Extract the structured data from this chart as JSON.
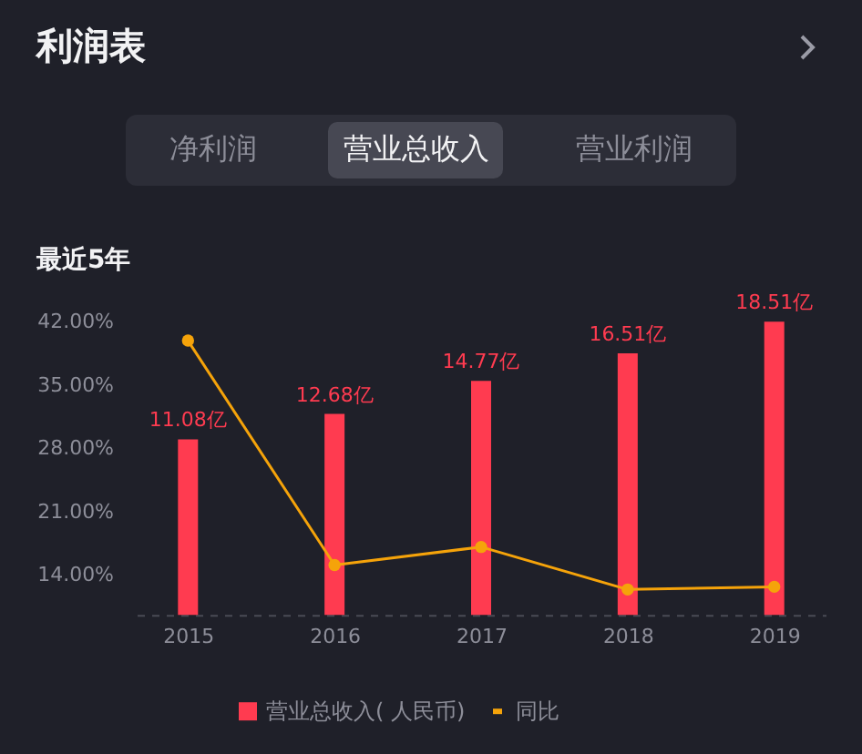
{
  "chart_data": {
    "type": "bar",
    "title": "利润表",
    "subtitle": "最近5年",
    "annotations": [
      "净利润",
      "营业总收入",
      "营业利润"
    ],
    "categories": [
      "2015",
      "2016",
      "2017",
      "2018",
      "2019"
    ],
    "series": [
      {
        "name": "营业总收入( 人民币)",
        "axis": "y2",
        "color": "#ff3b50",
        "values": [
          11.08,
          12.68,
          14.77,
          16.51,
          18.51
        ],
        "value_labels": [
          "11.08亿",
          "12.68亿",
          "14.77亿",
          "16.51亿",
          "18.51亿"
        ]
      },
      {
        "name": "同比",
        "type": "line",
        "color": "#f5a30a",
        "values": [
          39.9,
          15.1,
          17.1,
          12.4,
          12.7
        ]
      }
    ],
    "ylim": [
      9.6,
      42
    ],
    "yticks": [
      {
        "value": 14,
        "label": "14.00%"
      },
      {
        "value": 21,
        "label": "21.00%"
      },
      {
        "value": 28,
        "label": "28.00%"
      },
      {
        "value": 35,
        "label": "35.00%"
      },
      {
        "value": 42,
        "label": "42.00%"
      }
    ],
    "legend": "bottom",
    "marker": "circle",
    "grid": false
  }
}
